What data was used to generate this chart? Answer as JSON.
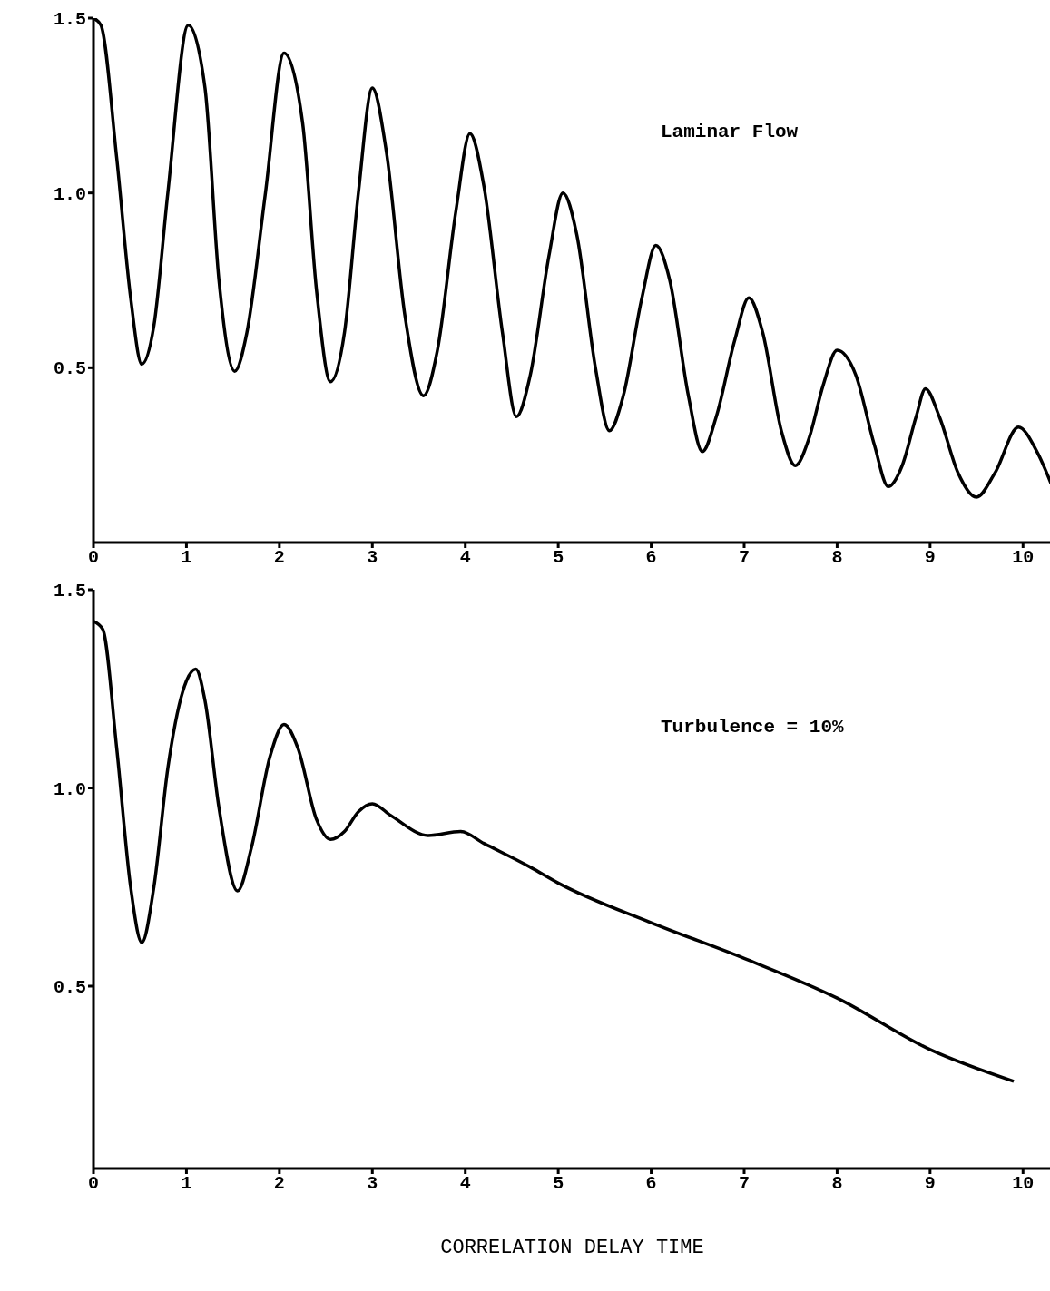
{
  "chart_data": [
    {
      "type": "line",
      "annotations": [
        "Laminar Flow"
      ],
      "xlim": [
        0,
        10.3
      ],
      "xticks": [
        0,
        1,
        2,
        3,
        4,
        5,
        6,
        7,
        8,
        9,
        10
      ],
      "ylim": [
        0,
        1.5
      ],
      "yticks": [
        {
          "value": 0.5,
          "label": "0.5"
        },
        {
          "value": 1,
          "label": "1.0"
        },
        {
          "value": 1.5,
          "label": "1.5"
        }
      ],
      "marker": "none",
      "line_style": "solid",
      "series": [
        {
          "color": "#000000",
          "x": [
            0,
            0.08,
            0.25,
            0.4,
            0.52,
            0.65,
            0.8,
            1.02,
            1.2,
            1.35,
            1.52,
            1.65,
            1.85,
            2.05,
            2.25,
            2.4,
            2.55,
            2.7,
            2.85,
            3.0,
            3.15,
            3.35,
            3.55,
            3.7,
            3.9,
            4.05,
            4.2,
            4.4,
            4.55,
            4.7,
            4.9,
            5.05,
            5.2,
            5.4,
            5.55,
            5.7,
            5.9,
            6.05,
            6.2,
            6.4,
            6.55,
            6.7,
            6.9,
            7.05,
            7.2,
            7.4,
            7.55,
            7.7,
            7.85,
            8.0,
            8.2,
            8.4,
            8.55,
            8.7,
            8.85,
            8.95,
            9.1,
            9.3,
            9.5,
            9.7,
            9.95,
            10.15,
            10.3
          ],
          "values": [
            1.5,
            1.48,
            1.1,
            0.7,
            0.51,
            0.62,
            1.0,
            1.48,
            1.3,
            0.75,
            0.49,
            0.6,
            1.0,
            1.4,
            1.2,
            0.72,
            0.46,
            0.6,
            1.0,
            1.3,
            1.12,
            0.65,
            0.42,
            0.55,
            0.95,
            1.17,
            1.02,
            0.6,
            0.36,
            0.48,
            0.82,
            1.0,
            0.88,
            0.5,
            0.32,
            0.42,
            0.7,
            0.85,
            0.75,
            0.42,
            0.26,
            0.36,
            0.58,
            0.7,
            0.6,
            0.32,
            0.22,
            0.3,
            0.45,
            0.55,
            0.48,
            0.28,
            0.16,
            0.22,
            0.36,
            0.44,
            0.36,
            0.2,
            0.13,
            0.2,
            0.33,
            0.26,
            0.17
          ]
        }
      ]
    },
    {
      "type": "line",
      "annotations": [
        "Turbulence = 10%"
      ],
      "xlabel": "CORRELATION DELAY TIME",
      "xlim": [
        0,
        10.3
      ],
      "xticks": [
        0,
        1,
        2,
        3,
        4,
        5,
        6,
        7,
        8,
        9,
        10
      ],
      "ylim": [
        0.04,
        1.5
      ],
      "yticks": [
        {
          "value": 0.5,
          "label": "0.5"
        },
        {
          "value": 1,
          "label": "1.0"
        },
        {
          "value": 1.5,
          "label": "1.5"
        }
      ],
      "marker": "none",
      "line_style": "solid",
      "series": [
        {
          "color": "#000000",
          "x": [
            0,
            0.1,
            0.25,
            0.4,
            0.52,
            0.65,
            0.8,
            1.0,
            1.1,
            1.2,
            1.35,
            1.55,
            1.7,
            1.9,
            2.05,
            2.2,
            2.4,
            2.55,
            2.7,
            2.85,
            3.0,
            3.2,
            3.6,
            3.95,
            4.2,
            4.7,
            5,
            6,
            7,
            8,
            9,
            9.9
          ],
          "values": [
            1.42,
            1.4,
            1.1,
            0.75,
            0.61,
            0.75,
            1.05,
            1.27,
            1.3,
            1.22,
            0.95,
            0.74,
            0.85,
            1.08,
            1.16,
            1.1,
            0.92,
            0.87,
            0.89,
            0.94,
            0.96,
            0.93,
            0.88,
            0.89,
            0.86,
            0.8,
            0.76,
            0.66,
            0.57,
            0.47,
            0.34,
            0.26
          ]
        }
      ]
    }
  ]
}
